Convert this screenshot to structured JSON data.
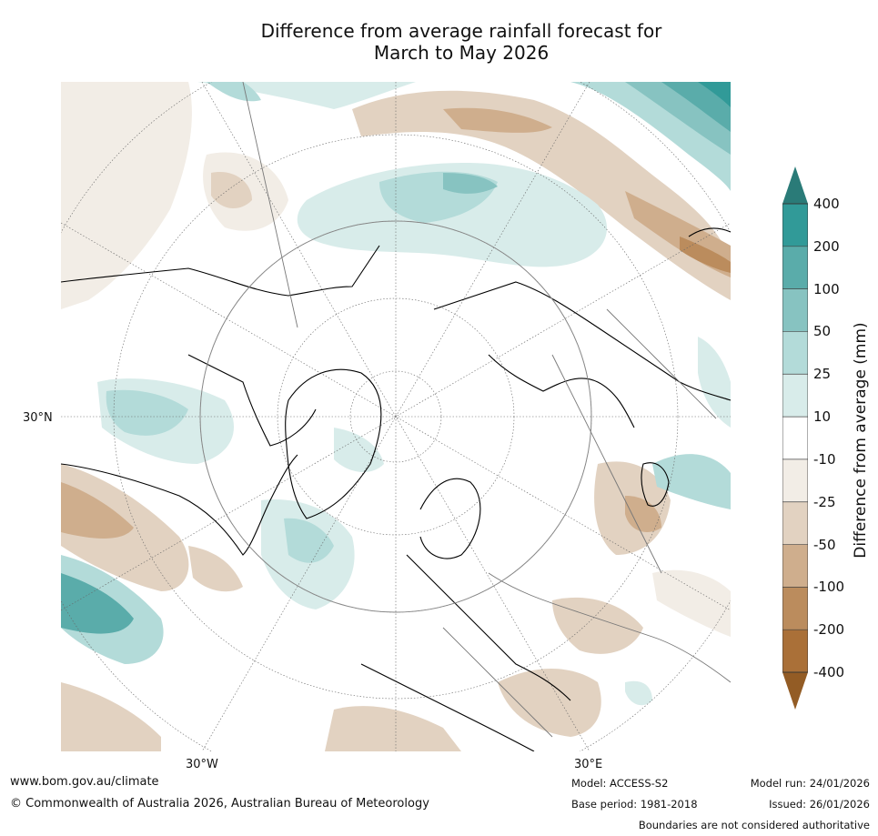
{
  "title": {
    "line1": "Difference from average rainfall forecast for",
    "line2": "March to May 2026"
  },
  "map": {
    "projection": "north-polar-stereographic",
    "region": "Northern Hemisphere",
    "tick_labels": {
      "lat": "30°N",
      "lon_west": "30°W",
      "lon_east": "30°E"
    }
  },
  "colorbar": {
    "title": "Difference from average (mm)",
    "labels": [
      "400",
      "200",
      "100",
      "50",
      "25",
      "10",
      "-10",
      "-25",
      "-50",
      "-100",
      "-200",
      "-400"
    ],
    "colors": [
      "#2a7b78",
      "#319a98",
      "#5aacaa",
      "#87c3c1",
      "#b3dbd9",
      "#d8ecea",
      "#ffffff",
      "#f2ede6",
      "#e2d2c1",
      "#cfae8d",
      "#bb8c5d",
      "#aa7038",
      "#935c25"
    ]
  },
  "footer": {
    "website": "www.bom.gov.au/climate",
    "copyright": "© Commonwealth of Australia 2026, Australian Bureau of Meteorology",
    "model": "Model: ACCESS-S2",
    "base_period": "Base period: 1981-2018",
    "model_run": "Model run: 24/01/2026",
    "issued": "Issued: 26/01/2026",
    "disclaimer": "Boundaries are not considered authoritative"
  }
}
